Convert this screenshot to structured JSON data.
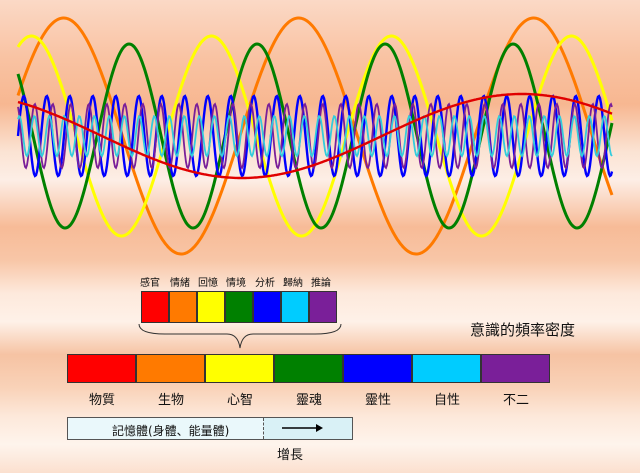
{
  "diagram": {
    "title": "意識的頻率密度",
    "small_labels": [
      "感官",
      "情緒",
      "回憶",
      "情境",
      "分析",
      "歸納",
      "推論"
    ],
    "small_colors": [
      "#ff0000",
      "#ff7a00",
      "#ffff00",
      "#008000",
      "#0000ff",
      "#00ccff",
      "#7a1f99"
    ],
    "large_labels": [
      "物質",
      "生物",
      "心智",
      "靈魂",
      "靈性",
      "自性",
      "不二"
    ],
    "large_colors": [
      "#ff0000",
      "#ff7a00",
      "#ffff00",
      "#008000",
      "#0000ff",
      "#00ccff",
      "#7a1f99"
    ],
    "memory_label": "記憶體(身體、能量體)",
    "growth_label": "增長"
  },
  "waves": [
    {
      "name": "red",
      "color": "#e00000"
    },
    {
      "name": "orange",
      "color": "#ff7a00"
    },
    {
      "name": "yellow",
      "color": "#ffff00"
    },
    {
      "name": "green",
      "color": "#008000"
    },
    {
      "name": "blue",
      "color": "#0000ff"
    },
    {
      "name": "cyan",
      "color": "#33ccdd"
    },
    {
      "name": "purple",
      "color": "#7a1f99"
    }
  ]
}
